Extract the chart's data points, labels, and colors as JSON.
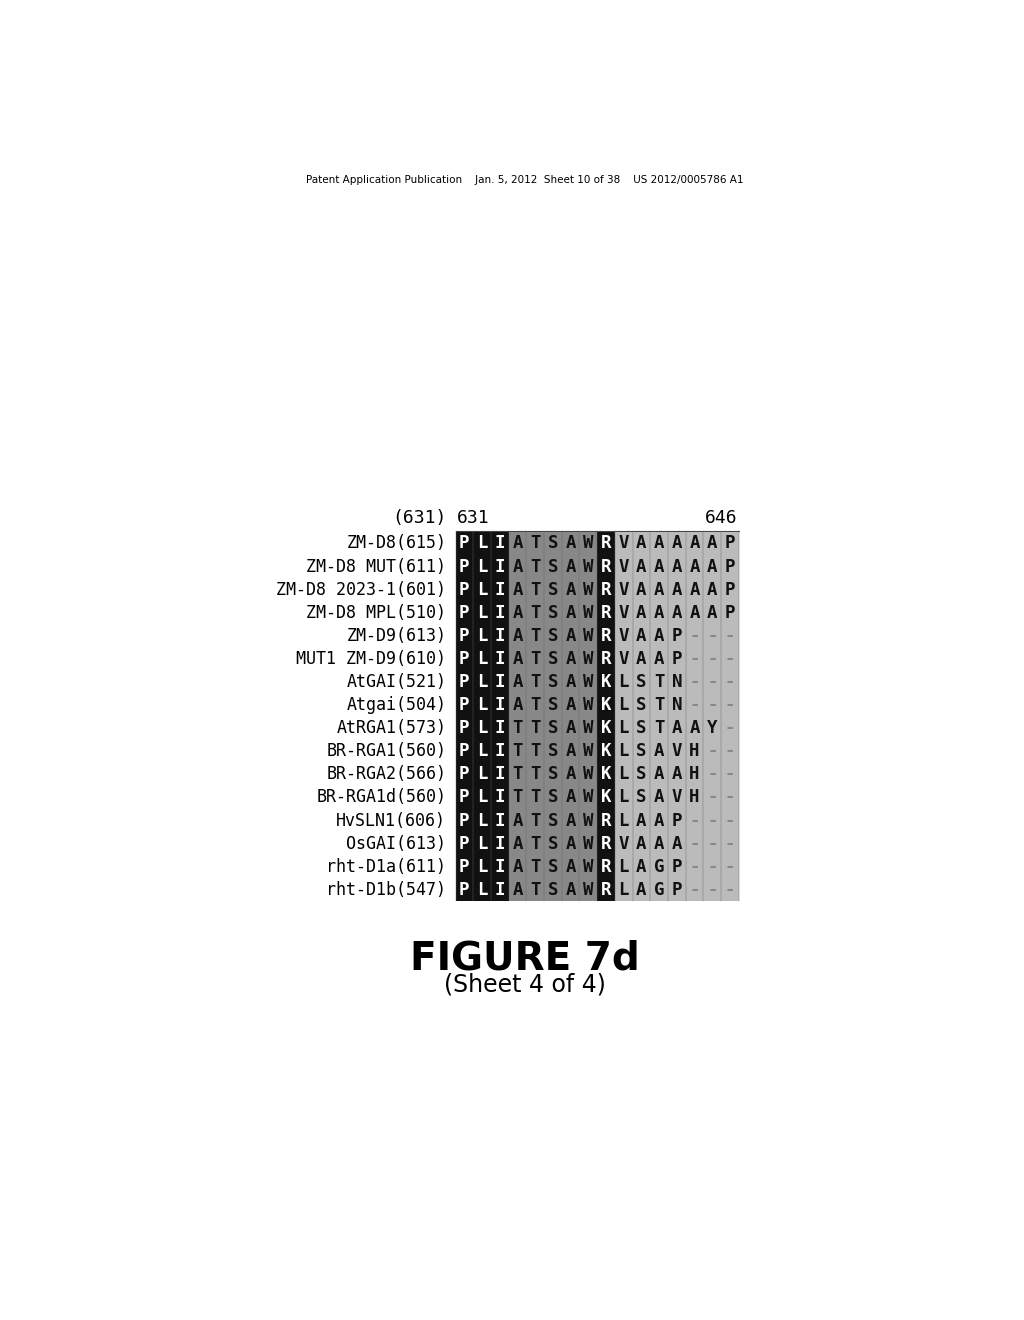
{
  "header_text": "Patent Application Publication    Jan. 5, 2012  Sheet 10 of 38    US 2012/0005786 A1",
  "figure_label": "FIGURE 7d",
  "figure_sublabel": "(Sheet 4 of 4)",
  "ruler_label": "(631)",
  "ruler_start": "631",
  "ruler_end": "646",
  "sequences": [
    {
      "name": "ZM-D8(615)",
      "seq": "PLIATSAWRVAAAAAP"
    },
    {
      "name": "ZM-D8 MUT(611)",
      "seq": "PLIATSAWRVAAAAAP"
    },
    {
      "name": "ZM-D8 2023-1(601)",
      "seq": "PLIATSAWRVAAAAAP"
    },
    {
      "name": "ZM-D8 MPL(510)",
      "seq": "PLIATSAWRVAAAAAP"
    },
    {
      "name": "ZM-D9(613)",
      "seq": "PLIATSAWRVAAP---"
    },
    {
      "name": "MUT1 ZM-D9(610)",
      "seq": "PLIATSAWRVAAP---"
    },
    {
      "name": "AtGAI(521)",
      "seq": "PLIATSAWKLSTN---"
    },
    {
      "name": "Atgai(504)",
      "seq": "PLIATSAWKLSTN---"
    },
    {
      "name": "AtRGA1(573)",
      "seq": "PLITTSAWKLSTAAY-"
    },
    {
      "name": "BR-RGA1(560)",
      "seq": "PLITTSAWKLSAVH--"
    },
    {
      "name": "BR-RGA2(566)",
      "seq": "PLITTSAWKLSAAH--"
    },
    {
      "name": "BR-RGA1d(560)",
      "seq": "PLITTSAWKLSAVH--"
    },
    {
      "name": "HvSLN1(606)",
      "seq": "PLIATSAWRLAAP---"
    },
    {
      "name": "OsGAI(613)",
      "seq": "PLIATSAWRVAAA---"
    },
    {
      "name": "rht-D1a(611)",
      "seq": "PLIATSAWRLAGP---"
    },
    {
      "name": "rht-D1b(547)",
      "seq": "PLIATSAWRLAGP---"
    }
  ],
  "col_bg": [
    "#111111",
    "#111111",
    "#111111",
    "#888888",
    "#888888",
    "#888888",
    "#888888",
    "#888888",
    "#111111",
    "#bbbbbb",
    "#bbbbbb",
    "#bbbbbb",
    "#bbbbbb",
    "#bbbbbb",
    "#bbbbbb",
    "#bbbbbb"
  ],
  "bg_color": "#ffffff"
}
